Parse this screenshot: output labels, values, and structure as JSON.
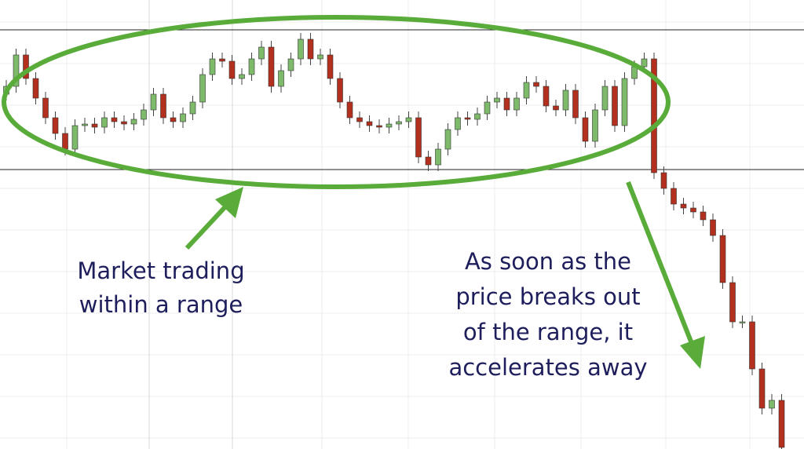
{
  "chart_data": {
    "type": "candlestick",
    "ylim": [
      0,
      572
    ],
    "hlines": [
      534,
      356
    ],
    "up_color": "#7dba6a",
    "down_color": "#b3301f",
    "open": [
      452,
      462,
      502,
      472,
      447,
      422,
      402,
      382,
      412,
      414,
      410,
      422,
      417,
      414,
      420,
      432,
      452,
      422,
      417,
      427,
      442,
      477,
      497,
      494,
      472,
      477,
      497,
      512,
      462,
      482,
      497,
      522,
      497,
      502,
      472,
      442,
      422,
      417,
      412,
      410,
      414,
      417,
      422,
      372,
      362,
      382,
      407,
      422,
      420,
      427,
      442,
      447,
      432,
      447,
      467,
      462,
      437,
      432,
      457,
      422,
      392,
      432,
      462,
      412,
      472,
      487,
      497,
      352,
      332,
      312,
      307,
      302,
      292,
      272,
      212,
      162,
      162,
      102,
      52,
      62
    ],
    "high": [
      470,
      510,
      510,
      480,
      455,
      430,
      410,
      420,
      422,
      422,
      430,
      430,
      425,
      428,
      440,
      460,
      460,
      430,
      435,
      450,
      485,
      505,
      505,
      502,
      485,
      505,
      520,
      520,
      490,
      505,
      530,
      530,
      510,
      510,
      480,
      450,
      430,
      425,
      420,
      422,
      425,
      430,
      430,
      380,
      390,
      415,
      430,
      430,
      435,
      450,
      455,
      455,
      455,
      475,
      475,
      470,
      445,
      465,
      465,
      430,
      440,
      470,
      470,
      480,
      495,
      505,
      505,
      360,
      340,
      320,
      315,
      310,
      300,
      280,
      220,
      170,
      170,
      110,
      70,
      70
    ],
    "low": [
      444,
      454,
      464,
      439,
      414,
      394,
      374,
      374,
      404,
      402,
      402,
      409,
      406,
      406,
      412,
      424,
      414,
      409,
      409,
      419,
      434,
      469,
      486,
      464,
      464,
      469,
      489,
      454,
      454,
      474,
      489,
      489,
      489,
      464,
      434,
      414,
      409,
      404,
      402,
      402,
      406,
      409,
      364,
      354,
      354,
      374,
      399,
      412,
      412,
      419,
      434,
      424,
      424,
      439,
      454,
      429,
      424,
      424,
      414,
      384,
      384,
      424,
      404,
      404,
      464,
      479,
      344,
      324,
      304,
      299,
      294,
      284,
      264,
      204,
      154,
      154,
      94,
      44,
      44,
      0
    ],
    "close": [
      462,
      502,
      472,
      447,
      422,
      402,
      382,
      412,
      414,
      410,
      422,
      417,
      414,
      420,
      432,
      452,
      422,
      417,
      427,
      442,
      477,
      497,
      494,
      472,
      477,
      497,
      512,
      462,
      482,
      497,
      522,
      497,
      502,
      472,
      442,
      422,
      417,
      412,
      410,
      414,
      417,
      422,
      372,
      362,
      382,
      407,
      422,
      420,
      427,
      442,
      447,
      432,
      447,
      467,
      462,
      437,
      432,
      457,
      422,
      392,
      432,
      462,
      412,
      472,
      487,
      497,
      352,
      332,
      312,
      307,
      302,
      292,
      272,
      212,
      162,
      162,
      102,
      52,
      62,
      2
    ],
    "annotations": [
      {
        "lines": [
          "Market trading",
          "within a range"
        ]
      },
      {
        "lines": [
          "As soon as the",
          "price breaks out",
          "of the range, it",
          "accelerates away"
        ]
      }
    ]
  }
}
